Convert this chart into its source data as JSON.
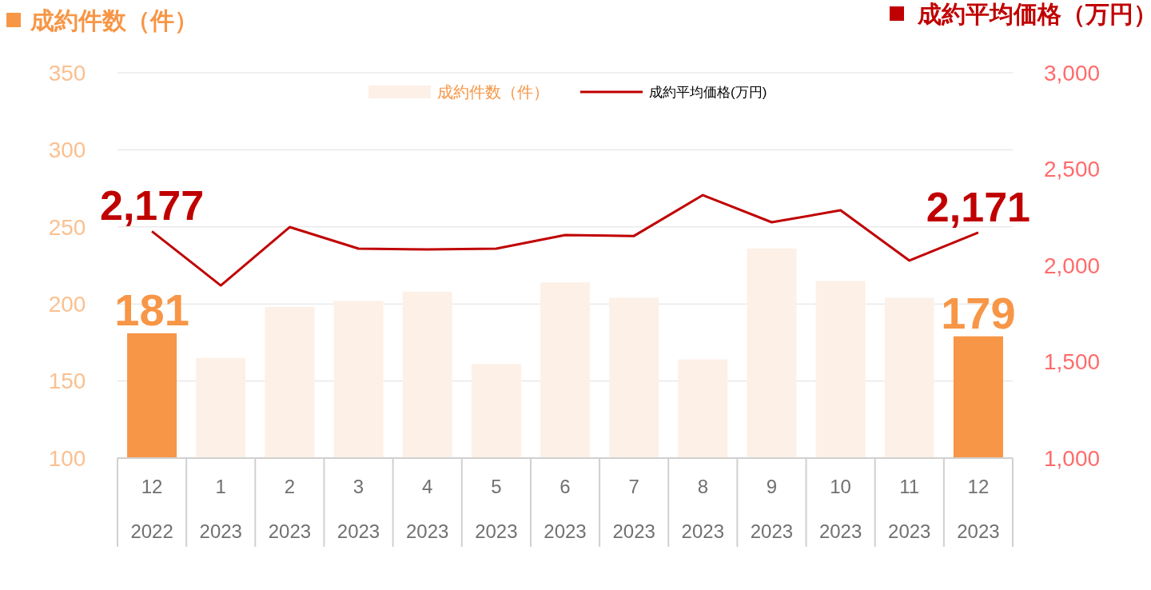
{
  "chart_data": {
    "type": "bar",
    "ylabel": "成約件数（件）",
    "y2label": "成約平均価格（万円）",
    "categories": [
      "12\n2022",
      "1\n2023",
      "2\n2023",
      "3\n2023",
      "4\n2023",
      "5\n2023",
      "6\n2023",
      "7\n2023",
      "8\n2023",
      "9\n2023",
      "10\n2023",
      "11\n2023",
      "12\n2023"
    ],
    "series": [
      {
        "name": "成約件数（件）",
        "color": "#fdf0e7",
        "colors": [
          "#f79646",
          "#fdf0e7",
          "#fdf0e7",
          "#fdf0e7",
          "#fdf0e7",
          "#fdf0e7",
          "#fdf0e7",
          "#fdf0e7",
          "#fdf0e7",
          "#fdf0e7",
          "#fdf0e7",
          "#fdf0e7",
          "#f79646"
        ],
        "values": [
          181,
          165,
          198,
          202,
          208,
          161,
          214,
          204,
          164,
          236,
          215,
          204,
          179
        ],
        "value_labels": [
          "181",
          null,
          null,
          null,
          null,
          null,
          null,
          null,
          null,
          null,
          null,
          null,
          "179"
        ]
      },
      {
        "name": "成約平均価格(万円)",
        "type": "line",
        "axis": "y2",
        "color": "#c00000",
        "values": [
          2177,
          1896,
          2199,
          2087,
          2083,
          2087,
          2158,
          2153,
          2365,
          2224,
          2286,
          2025,
          2171
        ],
        "value_labels": [
          "2,177",
          null,
          null,
          null,
          null,
          null,
          null,
          null,
          null,
          null,
          null,
          null,
          "2,171"
        ]
      }
    ],
    "ylim": [
      100,
      350
    ],
    "yticks": [
      100,
      150,
      200,
      250,
      300,
      350
    ],
    "y2lim": [
      1000,
      3000
    ],
    "y2ticks": [
      {
        "value": 1000,
        "label": "1,000"
      },
      {
        "value": 1500,
        "label": "1,500"
      },
      {
        "value": 2000,
        "label": "2,000"
      },
      {
        "value": 2500,
        "label": "2,500"
      },
      {
        "value": 3000,
        "label": "3,000"
      }
    ],
    "grid": "y",
    "legend": "top"
  }
}
